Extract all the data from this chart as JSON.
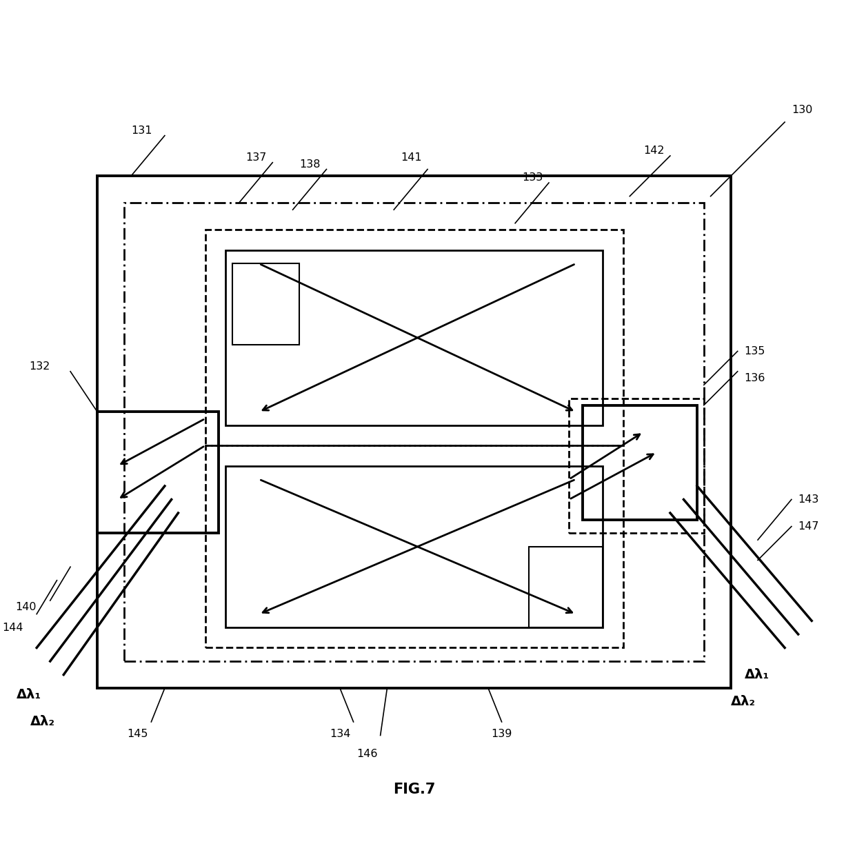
{
  "fig_width": 12.4,
  "fig_height": 12.27,
  "bg_color": "#ffffff",
  "line_color": "#000000",
  "figure_label": "FIG.7",
  "labels": {
    "130": "130",
    "131": "131",
    "132": "132",
    "133": "133",
    "134": "134",
    "135": "135",
    "136": "136",
    "137": "137",
    "138": "138",
    "139": "139",
    "140": "140",
    "141": "141",
    "142": "142",
    "143": "143",
    "144": "144",
    "145": "145",
    "146": "146",
    "147": "147"
  },
  "delta_lambda_1": "Δλ₁",
  "delta_lambda_2": "Δλ₂"
}
